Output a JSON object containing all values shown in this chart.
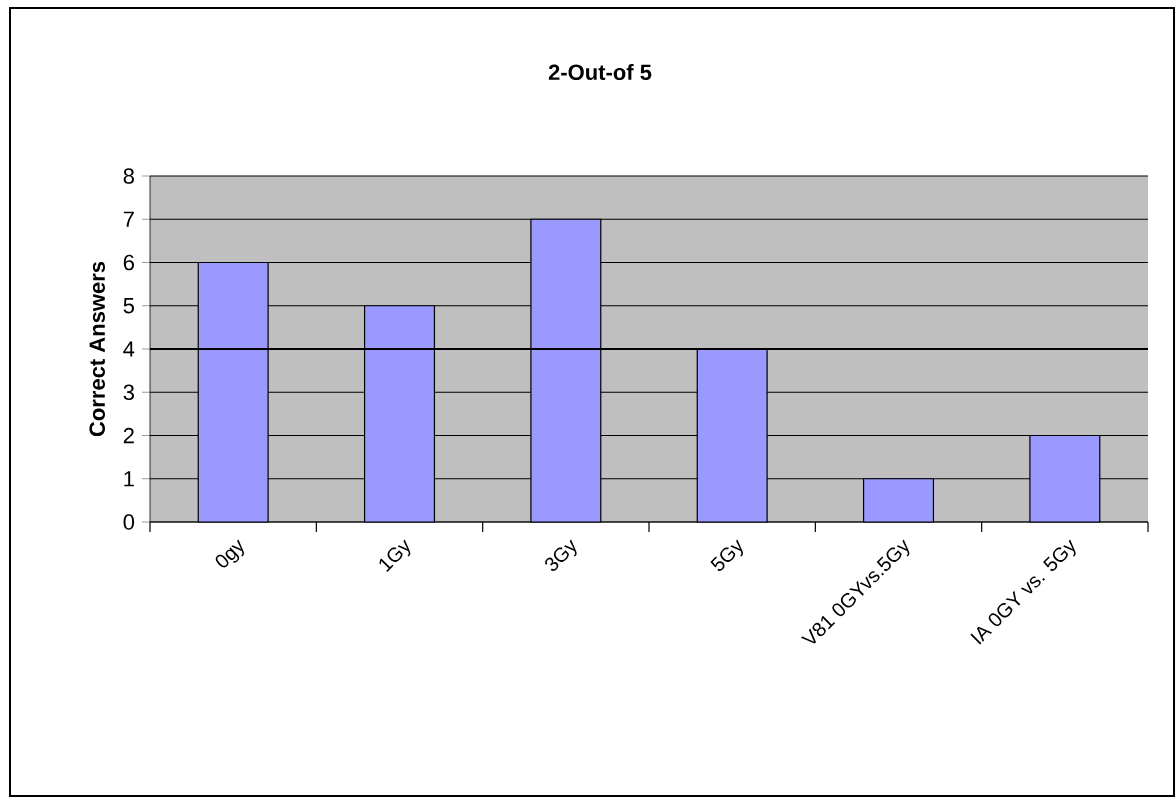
{
  "chart_data": {
    "type": "bar",
    "title": "2-Out-of 5",
    "ylabel": "Correct Answers",
    "categories": [
      "0gy",
      "1Gy",
      "3Gy",
      "5Gy",
      "V81 0GYvs.5Gy",
      "IA 0GY vs. 5Gy"
    ],
    "values": [
      6,
      5,
      7,
      4,
      1,
      2
    ],
    "color": "#9999ff",
    "ylim": [
      0,
      8
    ],
    "yticks": [
      0,
      1,
      2,
      3,
      4,
      5,
      6,
      7,
      8
    ],
    "grid": "y",
    "ref_lines": [
      {
        "axis": "y",
        "value": 4,
        "color": "#000000"
      }
    ]
  }
}
